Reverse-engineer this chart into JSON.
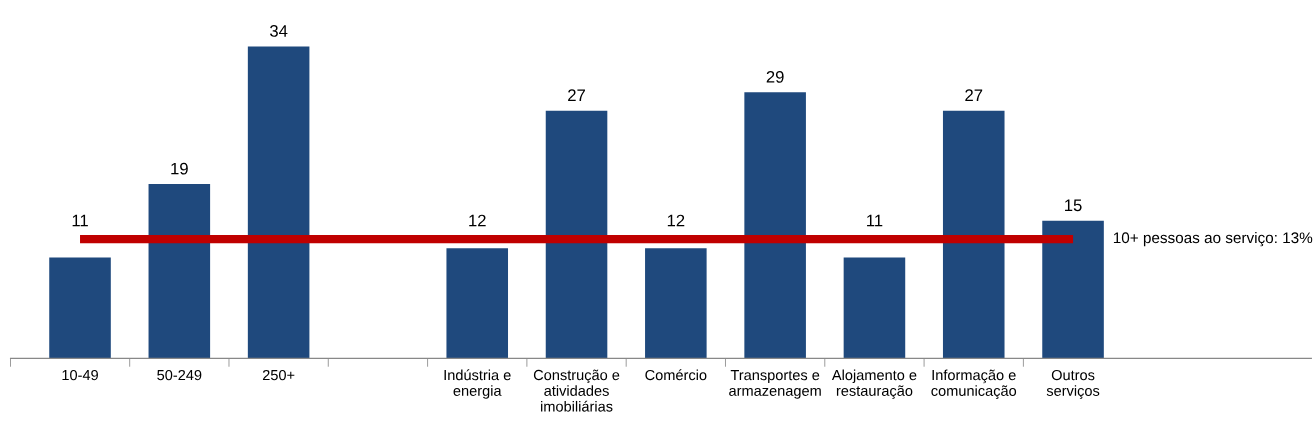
{
  "chart_data": {
    "type": "bar",
    "categories": [
      "10-49",
      "50-249",
      "250+",
      null,
      "Indústria e\nenergia",
      "Construção e\natividades\nimobiliárias",
      "Comércio",
      "Transportes e\narmazenagem",
      "Alojamento e\nrestauração",
      "Informação e\ncomunicação",
      "Outros\nserviços"
    ],
    "values": [
      11,
      19,
      34,
      null,
      12,
      27,
      12,
      29,
      11,
      27,
      15
    ],
    "color": "#1f497d",
    "data_labels": true,
    "ref_lines": [
      {
        "axis": "y",
        "value": 13,
        "label": "10+ pessoas ao serviço: 13%",
        "color": "#c00000"
      }
    ],
    "grid": false,
    "legend": false
  }
}
